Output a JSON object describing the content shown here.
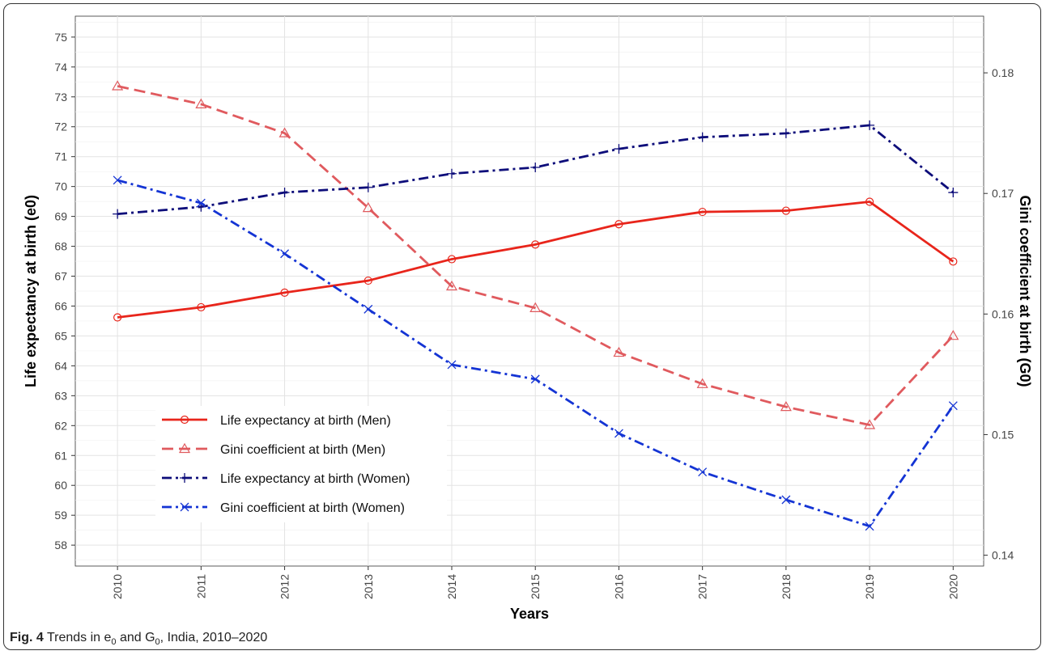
{
  "caption": {
    "fig_label": "Fig. 4",
    "text_1": "Trends in e",
    "sub_1": "0",
    "text_2": " and G",
    "sub_2": "0",
    "text_3": ", India, 2010–2020"
  },
  "chart_data": {
    "type": "line",
    "x": [
      2010,
      2011,
      2012,
      2013,
      2014,
      2015,
      2016,
      2017,
      2018,
      2019,
      2020
    ],
    "xlabel": "Years",
    "ylabel": "Life expectancy at birth (e0)",
    "y2label": "Gini coefficient at birth (G0)",
    "ylim": [
      57.3,
      75.7
    ],
    "y_ticks": [
      58,
      59,
      60,
      61,
      62,
      63,
      64,
      65,
      66,
      67,
      68,
      69,
      70,
      71,
      72,
      73,
      74,
      75
    ],
    "y2lim": [
      0.1391,
      0.1847
    ],
    "y2_ticks": [
      0.14,
      0.15,
      0.16,
      0.17,
      0.18
    ],
    "y2_tick_labels": [
      "0.14",
      "0.15",
      "0.16",
      "0.17",
      "0.18"
    ],
    "grid": true,
    "legend_position": "bottom-left",
    "series": [
      {
        "name": "Life expectancy at birth (Men)",
        "axis": "left",
        "color": "#e8251b",
        "dash": "solid",
        "marker": "circle",
        "values": [
          65.62,
          65.96,
          66.45,
          66.85,
          67.57,
          68.06,
          68.74,
          69.15,
          69.19,
          69.49,
          67.49
        ]
      },
      {
        "name": "Gini coefficient at birth (Men)",
        "axis": "right",
        "color": "#e05a5e",
        "dash": "dashed",
        "marker": "triangle",
        "values": [
          0.1789,
          0.1774,
          0.175,
          0.1688,
          0.1623,
          0.1605,
          0.1568,
          0.1542,
          0.1523,
          0.1508,
          0.1582
        ]
      },
      {
        "name": "Life expectancy at birth (Women)",
        "axis": "left",
        "color": "#0d0d7a",
        "dash": "dotdash",
        "marker": "plus",
        "values": [
          69.08,
          69.32,
          69.8,
          69.97,
          70.43,
          70.64,
          71.26,
          71.65,
          71.78,
          72.05,
          69.8
        ]
      },
      {
        "name": "Gini coefficient at birth (Women)",
        "axis": "right",
        "color": "#1434d4",
        "dash": "dotdash",
        "marker": "x",
        "values": [
          0.1711,
          0.1692,
          0.165,
          0.1604,
          0.1558,
          0.1546,
          0.1501,
          0.1469,
          0.1446,
          0.1424,
          0.1524
        ]
      }
    ]
  }
}
